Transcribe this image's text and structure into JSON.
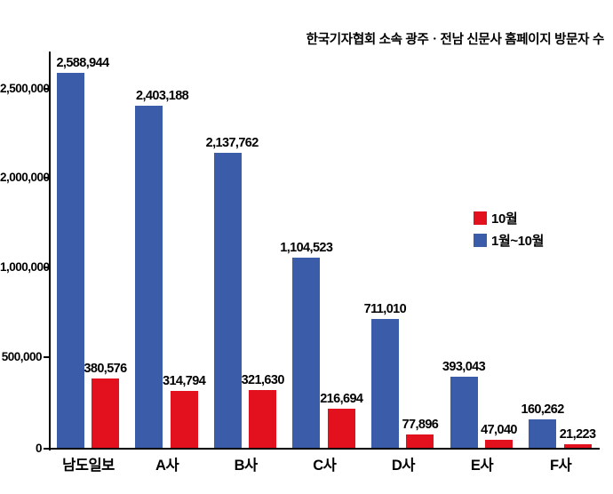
{
  "title": "한국기자협회 소속 광주ㆍ전남 신문사 홈페이지 방문자 수",
  "legend": {
    "items": [
      {
        "label": "10월",
        "color": "#e3101e"
      },
      {
        "label": "1월~10월",
        "color": "#3a5ca9"
      }
    ]
  },
  "chart_data": {
    "type": "bar",
    "title": "한국기자협회 소속 광주ㆍ전남 신문사 홈페이지 방문자 수",
    "categories": [
      "남도일보",
      "A사",
      "B사",
      "C사",
      "D사",
      "E사",
      "F사"
    ],
    "series": [
      {
        "name": "1월~10월",
        "color": "#3a5ca9",
        "values": [
          2588944,
          2403188,
          2137762,
          1104523,
          711010,
          393043,
          160262
        ],
        "label_dx": [
          14,
          15,
          5,
          0,
          0,
          0,
          0
        ]
      },
      {
        "name": "10월",
        "color": "#e3101e",
        "values": [
          380576,
          314794,
          321630,
          216694,
          77896,
          47040,
          21223
        ],
        "label_dx": [
          0,
          0,
          0,
          0,
          0,
          0,
          0
        ]
      }
    ],
    "value_labels_shown": true,
    "y_axis": {
      "ticks": [
        {
          "value": 0,
          "label": "0"
        },
        {
          "value": 500000,
          "label": "500,000"
        },
        {
          "value": 1000000,
          "label": "1,000,000"
        },
        {
          "value": 2000000,
          "label": "2,000,000"
        },
        {
          "value": 2500000,
          "label": "2,500,000"
        }
      ]
    },
    "grid": false,
    "legend_position": "middle-right"
  }
}
